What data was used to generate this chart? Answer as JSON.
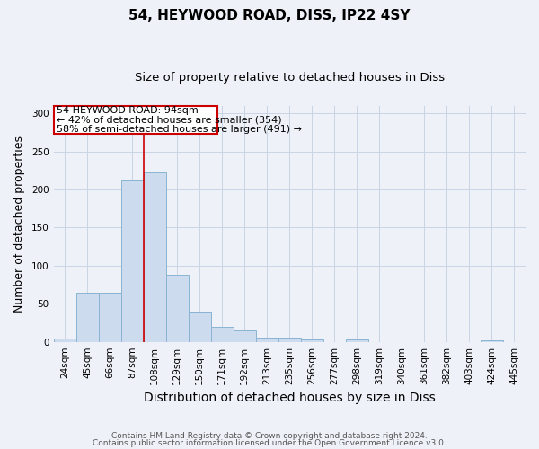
{
  "title1": "54, HEYWOOD ROAD, DISS, IP22 4SY",
  "title2": "Size of property relative to detached houses in Diss",
  "xlabel": "Distribution of detached houses by size in Diss",
  "ylabel": "Number of detached properties",
  "categories": [
    "24sqm",
    "45sqm",
    "66sqm",
    "87sqm",
    "108sqm",
    "129sqm",
    "150sqm",
    "171sqm",
    "192sqm",
    "213sqm",
    "235sqm",
    "256sqm",
    "277sqm",
    "298sqm",
    "319sqm",
    "340sqm",
    "361sqm",
    "382sqm",
    "403sqm",
    "424sqm",
    "445sqm"
  ],
  "values": [
    4,
    65,
    65,
    212,
    222,
    88,
    40,
    20,
    15,
    6,
    5,
    3,
    0,
    3,
    0,
    0,
    0,
    0,
    0,
    2,
    0
  ],
  "bar_color": "#ccdcee",
  "bar_edge_color": "#8ab4d4",
  "ylim": [
    0,
    310
  ],
  "yticks": [
    0,
    50,
    100,
    150,
    200,
    250,
    300
  ],
  "red_line_bin": 3,
  "annotation_line1": "54 HEYWOOD ROAD: 94sqm",
  "annotation_line2": "← 42% of detached houses are smaller (354)",
  "annotation_line3": "58% of semi-detached houses are larger (491) →",
  "footnote1": "Contains HM Land Registry data © Crown copyright and database right 2024.",
  "footnote2": "Contains public sector information licensed under the Open Government Licence v3.0.",
  "background_color": "#eef2f8",
  "grid_color": "#c8d4e4",
  "title1_fontsize": 11,
  "title2_fontsize": 9.5,
  "xlabel_fontsize": 10,
  "ylabel_fontsize": 9,
  "tick_fontsize": 7.5,
  "annotation_fontsize": 8,
  "footnote_fontsize": 6.5
}
